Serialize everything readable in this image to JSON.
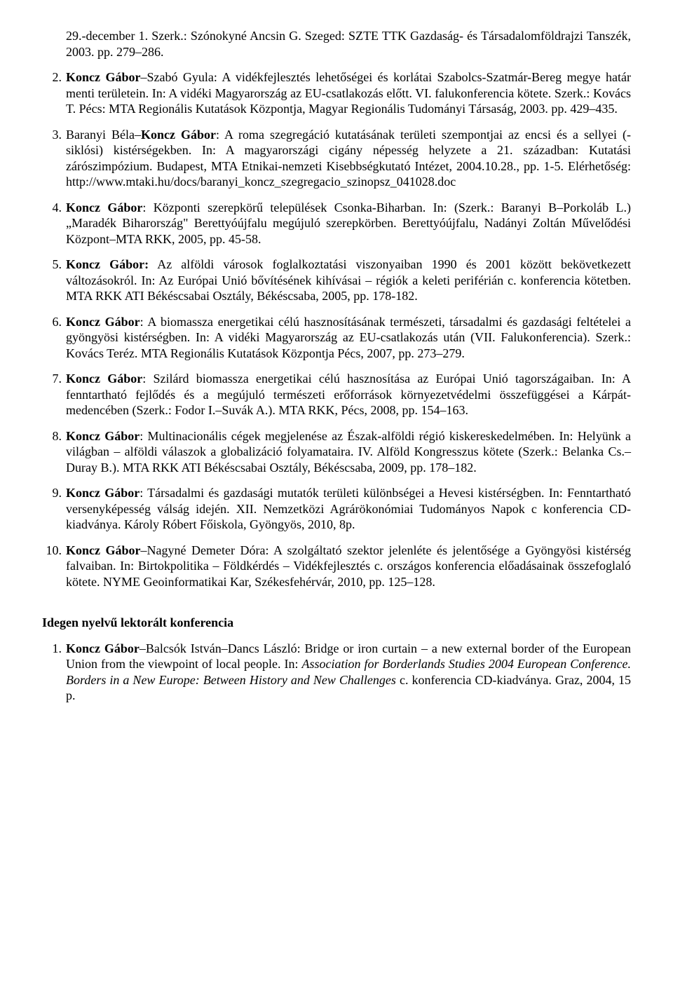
{
  "items": [
    {
      "num": "",
      "html": "29.-december 1. Szerk.: Szónokyné Ancsin G. Szeged: SZTE TTK Gazdaság- és Társadalomföldrajzi Tanszék, 2003. pp. 279–286."
    },
    {
      "num": "2.",
      "html": "<b>Koncz Gábor</b>–Szabó Gyula: A vidékfejlesztés lehetőségei és korlátai Szabolcs-Szatmár-Bereg megye határ menti területein. In: A vidéki Magyarország az EU-csatlakozás előtt. VI. falukonferencia kötete. Szerk.: Kovács T. Pécs: MTA Regionális Kutatások Központja, Magyar Regionális Tudományi Társaság, 2003. pp. 429–435."
    },
    {
      "num": "3.",
      "html": "Baranyi Béla–<b>Koncz Gábor</b>: A roma szegregáció kutatásának területi szempontjai az encsi és a sellyei (-siklósi) kistérségekben. In: A magyarországi cigány népesség helyzete a 21. században: Kutatási zárószimpózium. Budapest, MTA Etnikai-nemzeti Kisebbségkutató Intézet, 2004.10.28., pp. 1-5. Elérhetőség: http://www.mtaki.hu/docs/baranyi_koncz_szegregacio_szinopsz_041028.doc"
    },
    {
      "num": "4.",
      "html": "<b>Koncz Gábor</b>: Központi szerepkörű települések Csonka-Biharban. In: (Szerk.: Baranyi B–Porkoláb L.) „Maradék Biharország\" Berettyóújfalu megújuló szerepkörben. Berettyóújfalu, Nadányi Zoltán Művelődési Központ–MTA RKK, 2005, pp. 45-58."
    },
    {
      "num": "5.",
      "html": "<b>Koncz Gábor:</b> Az alföldi városok foglalkoztatási viszonyaiban 1990 és 2001 között bekövetkezett változásokról. In: Az Európai Unió bővítésének kihívásai – régiók a keleti periférián c. konferencia kötetben. MTA RKK ATI Békéscsabai Osztály, Békéscsaba, 2005, pp. 178-182."
    },
    {
      "num": "6.",
      "html": "<b>Koncz Gábor</b>: A biomassza energetikai célú hasznosításának természeti, társadalmi és gazdasági feltételei a gyöngyösi kistérségben. In: A vidéki Magyarország az EU-csatlakozás után (VII. Falukonferencia). Szerk.: Kovács Teréz. MTA Regionális Kutatások Központja Pécs, 2007, pp. 273–279."
    },
    {
      "num": "7.",
      "html": "<b>Koncz Gábor</b>: Szilárd biomassza energetikai célú hasznosítása az Európai Unió tagországaiban. In: A fenntartható fejlődés és a megújuló természeti erőforrások környezetvédelmi összefüggései a Kárpát-medencében (Szerk.: Fodor I.–Suvák A.). MTA RKK, Pécs, 2008, pp. 154–163."
    },
    {
      "num": "8.",
      "html": "<b>Koncz Gábor</b>: Multinacionális cégek megjelenése az Észak-alföldi régió kiskereskedelmében. In: Helyünk a világban – alföldi válaszok a globalizáció folyamataira. IV. Alföld Kongresszus kötete (Szerk.: Belanka Cs.–Duray B.). MTA RKK ATI Békéscsabai Osztály, Békéscsaba, 2009, pp. 178–182."
    },
    {
      "num": "9.",
      "html": "<b>Koncz Gábor</b>: Társadalmi és gazdasági mutatók területi különbségei a Hevesi kistérségben. In: Fenntartható versenyképesség válság idején. XII. Nemzetközi Agrárökonómiai Tudományos Napok c konferencia CD-kiadványa. Károly Róbert Főiskola, Gyöngyös, 2010, 8p."
    },
    {
      "num": "10.",
      "html": "<b>Koncz Gábor</b>–Nagyné Demeter Dóra: A szolgáltató szektor jelenléte és jelentősége a Gyöngyösi kistérség falvaiban. In: Birtokpolitika – Földkérdés – Vidékfejlesztés c. országos konferencia előadásainak összefoglaló kötete. NYME Geoinformatikai Kar, Székesfehérvár, 2010, pp. 125–128."
    }
  ],
  "section_heading": "Idegen nyelvű lektorált konferencia",
  "items2": [
    {
      "num": "1.",
      "html": "<b>Koncz Gábor</b>–Balcsók István–Dancs László: Bridge or iron curtain – a new external border of the European Union from the viewpoint of local people. In: <i>Association for Borderlands Studies 2004 European Conference. Borders in a New Europe: Between History and New Challenges</i> c. konferencia CD-kiadványa. Graz, 2004, 15 p."
    }
  ]
}
